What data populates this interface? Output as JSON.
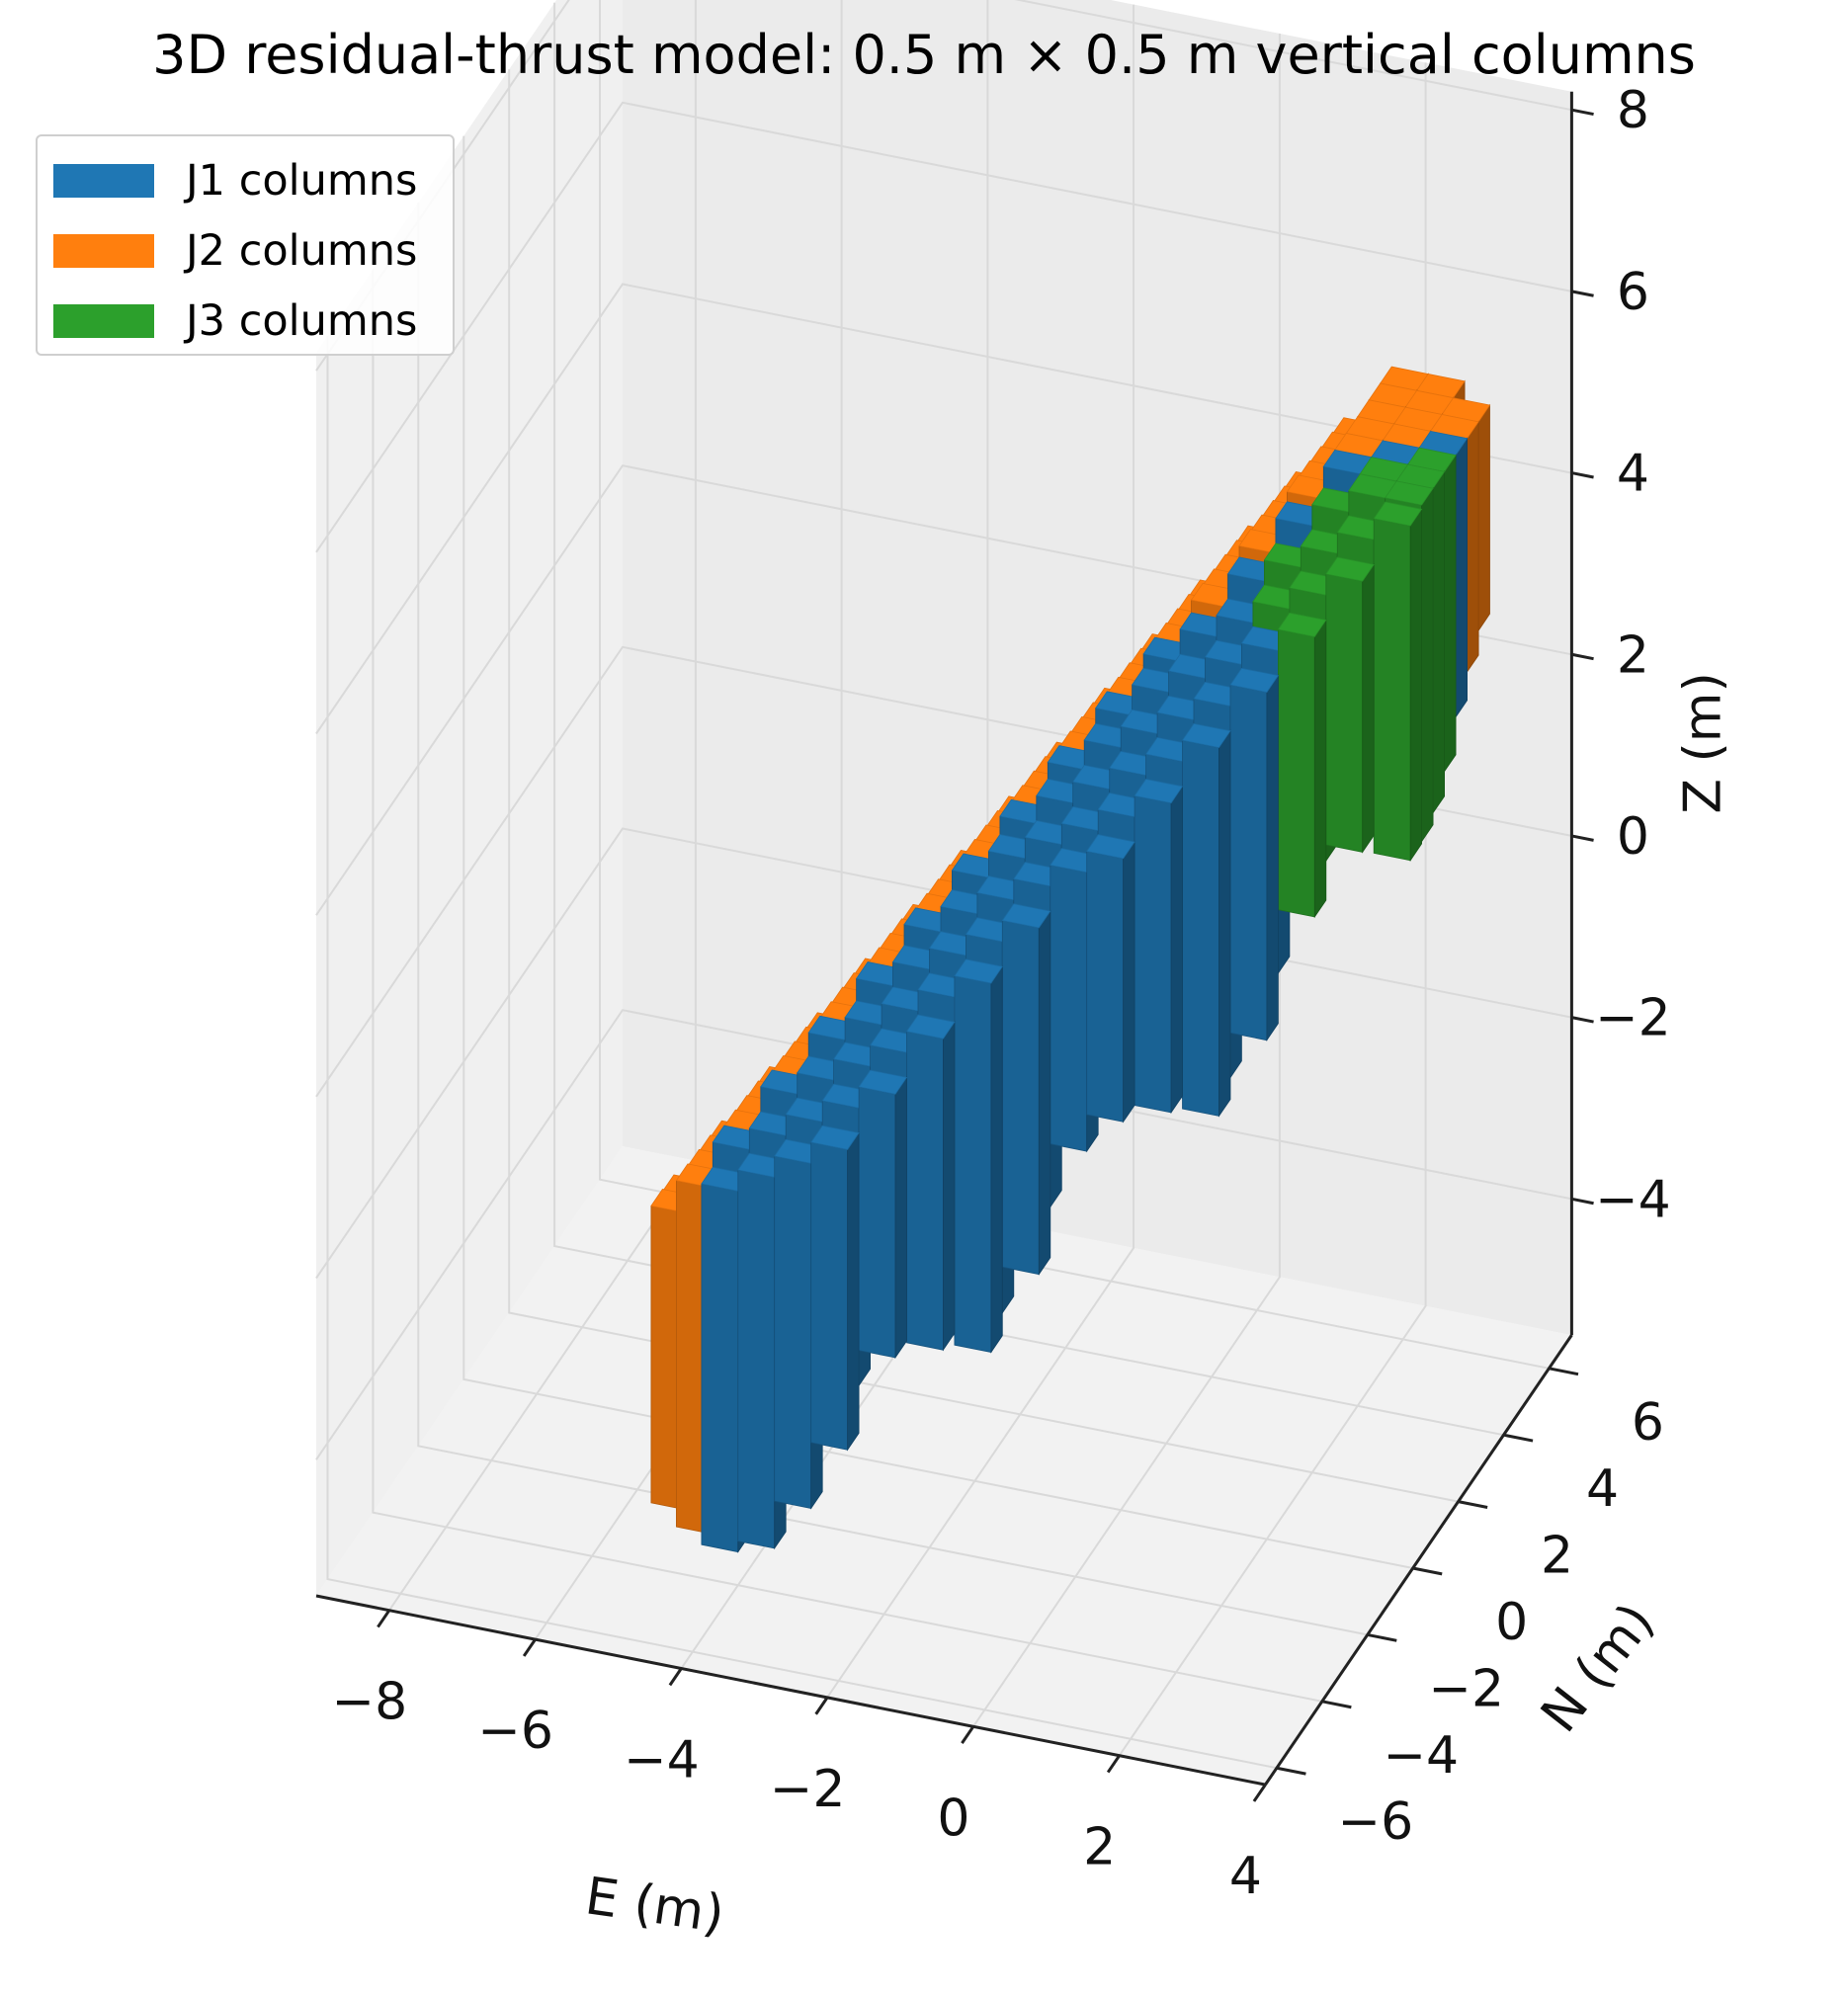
{
  "chart_data": {
    "type": "bar3d",
    "title": "3D residual-thrust model: 0.5 m × 0.5 m vertical columns",
    "xlabel": "E (m)",
    "ylabel": "N (m)",
    "zlabel": "Z (m)",
    "xticks": [
      "−8",
      "−6",
      "−4",
      "−2",
      "0",
      "2",
      "4"
    ],
    "yticks": [
      "−6",
      "−4",
      "−2",
      "0",
      "2",
      "4",
      "6"
    ],
    "zticks": [
      "−4",
      "−2",
      "0",
      "2",
      "4",
      "6",
      "8"
    ],
    "xlim": [
      -9,
      4
    ],
    "ylim": [
      -6.5,
      7
    ],
    "zlim": [
      -5.5,
      8.2
    ],
    "grid": true,
    "legend_position": "top-left",
    "column_size_m": 0.5,
    "series": [
      {
        "name": "J1 columns",
        "color": "#1f77b4"
      },
      {
        "name": "J2 columns",
        "color": "#ff7f0e"
      },
      {
        "name": "J3 columns",
        "color": "#2ca02c"
      }
    ]
  }
}
